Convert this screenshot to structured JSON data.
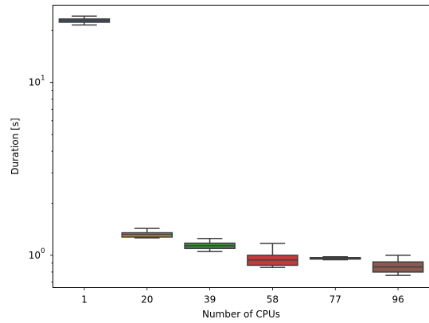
{
  "chart_data": {
    "type": "box",
    "title": "",
    "xlabel": "Number of CPUs",
    "ylabel": "Duration [s]",
    "yscale": "log",
    "ylim": [
      0.65,
      28
    ],
    "grid": false,
    "legend": "none",
    "categories": [
      "1",
      "20",
      "39",
      "58",
      "77",
      "96"
    ],
    "y_major_ticks": [
      1,
      10
    ],
    "y_major_tick_labels": [
      "10",
      "10"
    ],
    "y_major_tick_exponents": [
      "0",
      "1"
    ],
    "series": [
      {
        "min": 21.5,
        "q1": 22.3,
        "median": 22.8,
        "q3": 23.3,
        "max": 24.2,
        "color": "#3b5a7c"
      },
      {
        "min": 1.26,
        "q1": 1.275,
        "median": 1.32,
        "q3": 1.35,
        "max": 1.43,
        "color": "#c7812c"
      },
      {
        "min": 1.05,
        "q1": 1.095,
        "median": 1.135,
        "q3": 1.175,
        "max": 1.25,
        "color": "#3b8c3b"
      },
      {
        "min": 0.85,
        "q1": 0.875,
        "median": 0.94,
        "q3": 1.0,
        "max": 1.17,
        "color": "#c23b3a"
      },
      {
        "min": 0.942,
        "q1": 0.95,
        "median": 0.96,
        "q3": 0.97,
        "max": 0.98,
        "color": "#8464a6"
      },
      {
        "min": 0.765,
        "q1": 0.8,
        "median": 0.855,
        "q3": 0.915,
        "max": 1.0,
        "color": "#8a5a4f"
      }
    ]
  }
}
